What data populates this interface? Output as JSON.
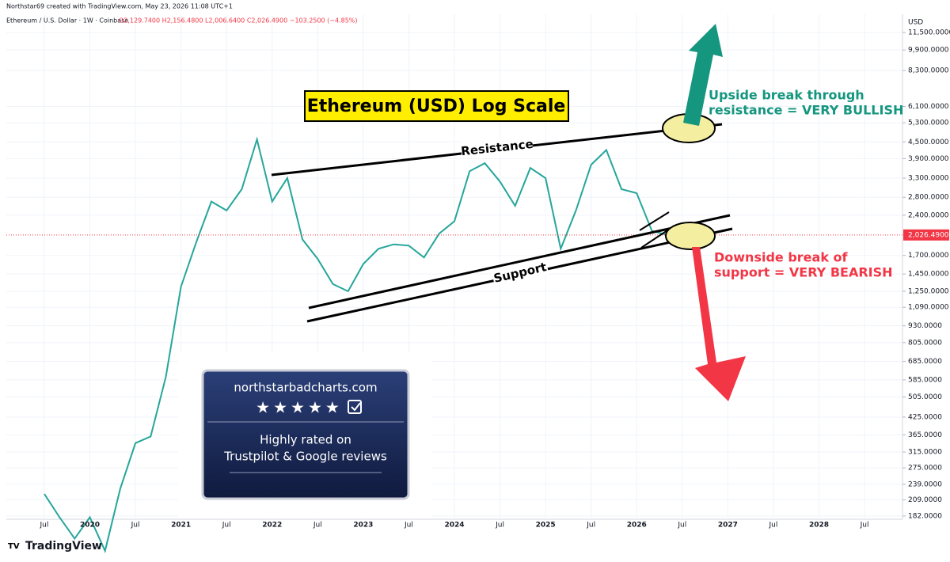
{
  "header": {
    "credit": "Northstar69 created with TradingView.com, May 23, 2026 11:08 UTC+1",
    "symbol": "Ethereum / U.S. Dollar · 1W · Coinbase",
    "ohlc": "O2,129.7400 H2,156.4800 L2,006.6400 C2,026.4900 −103.2500 (−4.85%)"
  },
  "chart_data": {
    "type": "line",
    "log_scale": true,
    "grid": true,
    "color": "#26a69a",
    "currency": "USD",
    "last_label": "2,026.4900",
    "title": "Ethereum (USD) Log Scale",
    "annotations": {
      "resistance": "Resistance",
      "support": "Support",
      "bullish": [
        "Upside break through",
        "resistance = VERY BULLISH"
      ],
      "bearish": [
        "Downside break of",
        "support = VERY BEARISH"
      ]
    },
    "x": [
      "2019-07",
      "2019-09",
      "2019-11",
      "2020-01",
      "2020-03",
      "2020-05",
      "2020-07",
      "2020-09",
      "2020-11",
      "2021-01",
      "2021-03",
      "2021-05",
      "2021-07",
      "2021-09",
      "2021-11",
      "2022-01",
      "2022-03",
      "2022-05",
      "2022-07",
      "2022-09",
      "2022-11",
      "2023-01",
      "2023-03",
      "2023-05",
      "2023-07",
      "2023-09",
      "2023-11",
      "2024-01",
      "2024-03",
      "2024-05",
      "2024-07",
      "2024-09",
      "2024-11",
      "2025-01",
      "2025-03",
      "2025-05",
      "2025-07",
      "2025-09",
      "2025-11",
      "2026-01",
      "2026-03",
      "2026-05"
    ],
    "values": [
      220,
      180,
      150,
      180,
      135,
      230,
      340,
      360,
      600,
      1300,
      1900,
      2700,
      2500,
      3000,
      4600,
      2700,
      3300,
      1950,
      1650,
      1330,
      1250,
      1580,
      1800,
      1870,
      1850,
      1670,
      2050,
      2280,
      3500,
      3750,
      3200,
      2600,
      3600,
      3300,
      1800,
      2500,
      3700,
      4200,
      3000,
      2900,
      2100,
      2026.49
    ],
    "xlim": [
      "2019-02",
      "2028-12"
    ],
    "xticks": [
      {
        "value": "2019-07",
        "label": "Jul"
      },
      {
        "value": "2020-01",
        "label": "2020"
      },
      {
        "value": "2020-07",
        "label": "Jul"
      },
      {
        "value": "2021-01",
        "label": "2021"
      },
      {
        "value": "2021-07",
        "label": "Jul"
      },
      {
        "value": "2022-01",
        "label": "2022"
      },
      {
        "value": "2022-07",
        "label": "Jul"
      },
      {
        "value": "2023-01",
        "label": "2023"
      },
      {
        "value": "2023-07",
        "label": "Jul"
      },
      {
        "value": "2024-01",
        "label": "2024"
      },
      {
        "value": "2024-07",
        "label": "Jul"
      },
      {
        "value": "2025-01",
        "label": "2025"
      },
      {
        "value": "2025-07",
        "label": "Jul"
      },
      {
        "value": "2026-01",
        "label": "2026"
      },
      {
        "value": "2026-07",
        "label": "Jul"
      },
      {
        "value": "2027-01",
        "label": "2027"
      },
      {
        "value": "2027-07",
        "label": "Jul"
      },
      {
        "value": "2028-01",
        "label": "2028"
      },
      {
        "value": "2028-07",
        "label": "Jul"
      }
    ],
    "ylim": [
      177,
      13450
    ],
    "yticks": [
      {
        "value": 11500,
        "label": "11,500.0000"
      },
      {
        "value": 9900,
        "label": "9,900.0000"
      },
      {
        "value": 8300,
        "label": "8,300.0000"
      },
      {
        "value": 6100,
        "label": "6,100.0000"
      },
      {
        "value": 5300,
        "label": "5,300.0000"
      },
      {
        "value": 4500,
        "label": "4,500.0000"
      },
      {
        "value": 3900,
        "label": "3,900.0000"
      },
      {
        "value": 3300,
        "label": "3,300.0000"
      },
      {
        "value": 2800,
        "label": "2,800.0000"
      },
      {
        "value": 2400,
        "label": "2,400.0000"
      },
      {
        "value": 1700,
        "label": "1,700.0000"
      },
      {
        "value": 1450,
        "label": "1,450.0000"
      },
      {
        "value": 1250,
        "label": "1,250.0000"
      },
      {
        "value": 1090,
        "label": "1,090.0000"
      },
      {
        "value": 930,
        "label": "930.0000"
      },
      {
        "value": 805,
        "label": "805.0000"
      },
      {
        "value": 685,
        "label": "685.0000"
      },
      {
        "value": 585,
        "label": "585.0000"
      },
      {
        "value": 505,
        "label": "505.0000"
      },
      {
        "value": 425,
        "label": "425.0000"
      },
      {
        "value": 365,
        "label": "365.0000"
      },
      {
        "value": 315,
        "label": "315.0000"
      },
      {
        "value": 275,
        "label": "275.0000"
      },
      {
        "value": 239,
        "label": "239.0000"
      },
      {
        "value": 209,
        "label": "209.0000"
      },
      {
        "value": 182,
        "label": "182.0000"
      }
    ]
  },
  "badge": {
    "site": "northstarbadcharts.com",
    "line1": "Highly rated on",
    "line2": "Trustpilot & Google reviews"
  },
  "footer": {
    "logo": "TradingView"
  }
}
